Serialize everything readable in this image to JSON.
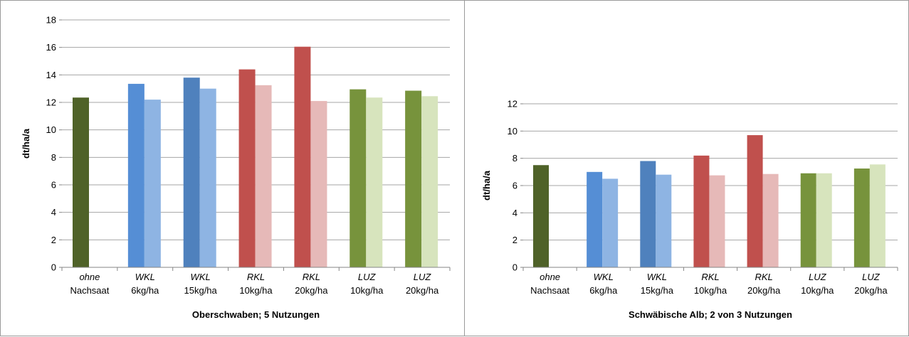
{
  "colors": {
    "ohne": "#4f6228",
    "wkl_dark": "#558ed5",
    "wkl_light": "#8eb4e3",
    "wkl15_dark": "#4f81bd",
    "rkl_dark": "#c0504d",
    "rkl_light": "#e6b9b8",
    "luz_dark": "#77933c",
    "luz_light": "#d7e4bd",
    "grid": "#a6a6a6",
    "axis": "#868686"
  },
  "chart_data": [
    {
      "type": "bar",
      "title": "",
      "xlabel": "Oberschwaben; 5 Nutzungen",
      "ylabel": "dt/ha/a",
      "ylim": [
        0,
        18
      ],
      "yticks": [
        "0",
        "2",
        "4",
        "6",
        "8",
        "10",
        "12",
        "14",
        "16",
        "18"
      ],
      "grid": true,
      "categories": [
        {
          "line1": "ohne",
          "line2": "Nachsaat"
        },
        {
          "line1": "WKL",
          "line2": "6kg/ha"
        },
        {
          "line1": "WKL",
          "line2": "15kg/ha"
        },
        {
          "line1": "RKL",
          "line2": "10kg/ha"
        },
        {
          "line1": "RKL",
          "line2": "20kg/ha"
        },
        {
          "line1": "LUZ",
          "line2": "10kg/ha"
        },
        {
          "line1": "LUZ",
          "line2": "20kg/ha"
        }
      ],
      "series": [
        {
          "values": [
            12.35,
            13.35,
            13.8,
            14.4,
            16.05,
            12.95,
            12.85
          ],
          "colors": [
            "#4f6228",
            "#558ed5",
            "#4f81bd",
            "#c0504d",
            "#c0504d",
            "#77933c",
            "#77933c"
          ]
        },
        {
          "values": [
            null,
            12.2,
            13.0,
            13.25,
            12.1,
            12.35,
            12.45
          ],
          "colors": [
            "#ffffff",
            "#8eb4e3",
            "#8eb4e3",
            "#e6b9b8",
            "#e6b9b8",
            "#d7e4bd",
            "#d7e4bd"
          ]
        }
      ]
    },
    {
      "type": "bar",
      "title": "",
      "xlabel": "Schwäbische Alb; 2 von 3 Nutzungen",
      "ylabel": "dt/ha/a",
      "ylim": [
        0,
        12
      ],
      "yticks": [
        "0",
        "2",
        "4",
        "6",
        "8",
        "10",
        "12"
      ],
      "grid": true,
      "categories": [
        {
          "line1": "ohne",
          "line2": "Nachsaat"
        },
        {
          "line1": "WKL",
          "line2": "6kg/ha"
        },
        {
          "line1": "WKL",
          "line2": "15kg/ha"
        },
        {
          "line1": "RKL",
          "line2": "10kg/ha"
        },
        {
          "line1": "RKL",
          "line2": "20kg/ha"
        },
        {
          "line1": "LUZ",
          "line2": "10kg/ha"
        },
        {
          "line1": "LUZ",
          "line2": "20kg/ha"
        }
      ],
      "series": [
        {
          "values": [
            7.5,
            7.0,
            7.8,
            8.2,
            9.7,
            6.9,
            7.25
          ],
          "colors": [
            "#4f6228",
            "#558ed5",
            "#4f81bd",
            "#c0504d",
            "#c0504d",
            "#77933c",
            "#77933c"
          ]
        },
        {
          "values": [
            null,
            6.5,
            6.8,
            6.75,
            6.85,
            6.9,
            7.55
          ],
          "colors": [
            "#ffffff",
            "#8eb4e3",
            "#8eb4e3",
            "#e6b9b8",
            "#e6b9b8",
            "#d7e4bd",
            "#d7e4bd"
          ]
        }
      ]
    }
  ]
}
